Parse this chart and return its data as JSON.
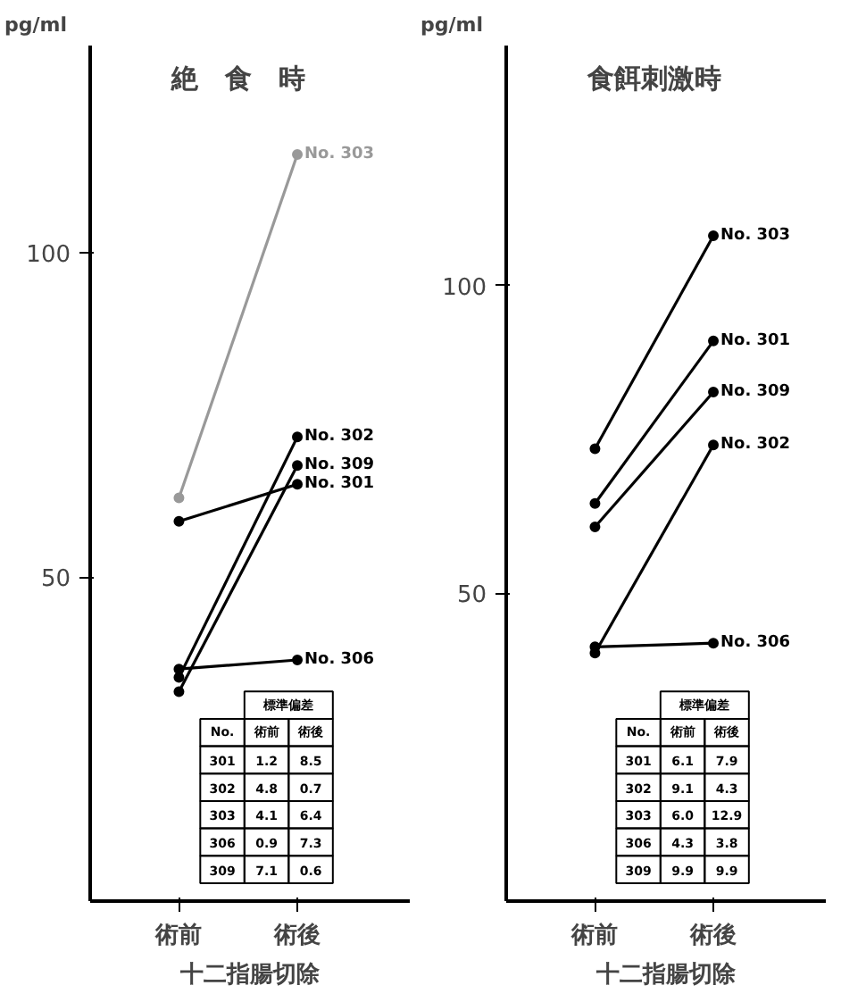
{
  "chart_data": [
    {
      "type": "line",
      "title": "絶　食　時",
      "ylabel": "pg/ml",
      "xlabel": "十二指腸切除",
      "categories": [
        "術前",
        "術後"
      ],
      "ylim": [
        0,
        132
      ],
      "yticks": [
        50,
        100
      ],
      "grid": false,
      "marker": "circle",
      "line_style": "solid",
      "series": [
        {
          "name": "No. 303",
          "color": "#999999",
          "values": [
            62.2,
            115.2
          ]
        },
        {
          "name": "No. 302",
          "color": "#000000",
          "values": [
            34.5,
            71.6
          ]
        },
        {
          "name": "No. 309",
          "color": "#000000",
          "values": [
            32.3,
            67.2
          ]
        },
        {
          "name": "No. 301",
          "color": "#000000",
          "values": [
            58.6,
            64.3
          ]
        },
        {
          "name": "No. 306",
          "color": "#000000",
          "values": [
            35.8,
            37.2
          ]
        }
      ],
      "annotations": [
        "標準偏差",
        "No.",
        "術前",
        "術後",
        "301 1.2 8.5",
        "302 4.8 0.7",
        "303 4.1 6.4",
        "306 0.9 7.3",
        "309 7.1 0.6"
      ]
    },
    {
      "type": "line",
      "title": "食餌刺激時",
      "ylabel": "pg/ml",
      "xlabel": "十二指腸切除",
      "categories": [
        "術前",
        "術後"
      ],
      "ylim": [
        0,
        139
      ],
      "yticks": [
        50,
        100
      ],
      "grid": false,
      "marker": "circle",
      "line_style": "solid",
      "series": [
        {
          "name": "No. 303",
          "color": "#000000",
          "values": [
            73.5,
            108.1
          ]
        },
        {
          "name": "No. 301",
          "color": "#000000",
          "values": [
            64.6,
            91.0
          ]
        },
        {
          "name": "No. 309",
          "color": "#000000",
          "values": [
            60.8,
            82.7
          ]
        },
        {
          "name": "No. 302",
          "color": "#000000",
          "values": [
            40.3,
            74.1
          ]
        },
        {
          "name": "No. 306",
          "color": "#000000",
          "values": [
            41.3,
            41.9
          ]
        }
      ],
      "annotations": [
        "標準偏差",
        "No.",
        "術前",
        "術後",
        "301 6.1 7.9",
        "302 9.1 4.3",
        "303 6.0 12.9",
        "306 4.3 3.8",
        "309 9.9 9.9"
      ]
    }
  ]
}
